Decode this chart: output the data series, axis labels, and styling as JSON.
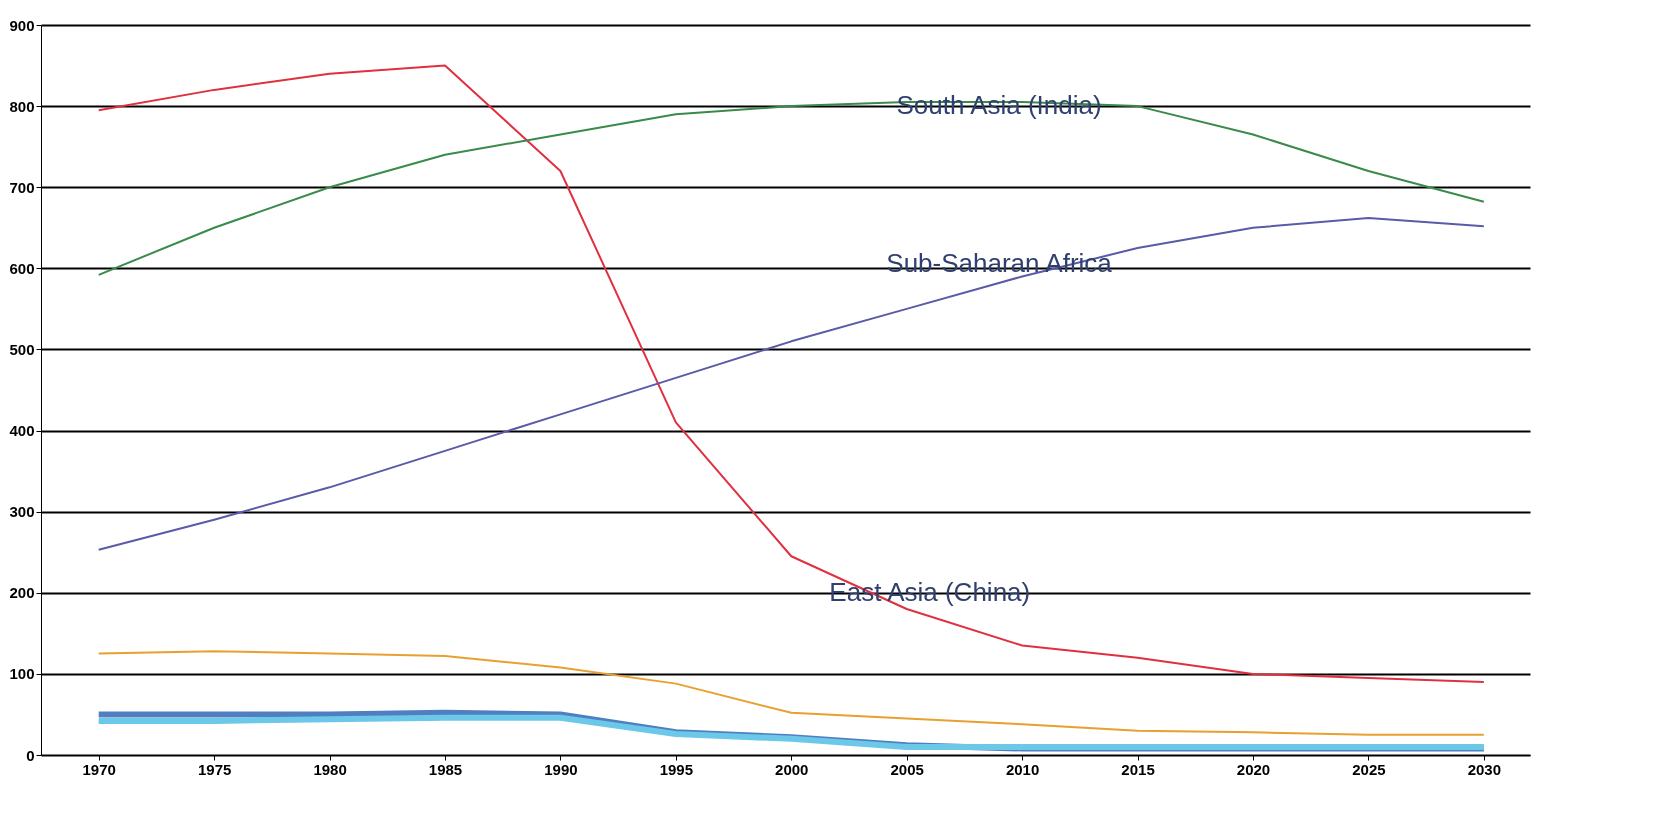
{
  "chart_data": {
    "type": "line",
    "x": [
      1970,
      1975,
      1980,
      1985,
      1990,
      1995,
      2000,
      2005,
      2010,
      2015,
      2020,
      2025,
      2030
    ],
    "series": [
      {
        "name": "East Asia (China)",
        "color": "#e03040",
        "values": [
          795,
          820,
          840,
          850,
          720,
          410,
          245,
          180,
          135,
          120,
          100,
          95,
          90
        ]
      },
      {
        "name": "South Asia (India)",
        "color": "#3a8a4a",
        "values": [
          592,
          650,
          700,
          740,
          765,
          790,
          800,
          805,
          805,
          800,
          765,
          720,
          682
        ]
      },
      {
        "name": "Sub-Saharan Africa",
        "color": "#5a5aa8",
        "values": [
          253,
          290,
          330,
          375,
          420,
          465,
          510,
          550,
          590,
          625,
          650,
          662,
          652
        ]
      },
      {
        "color": "#e8a030",
        "values": [
          125,
          128,
          125,
          122,
          108,
          88,
          52,
          45,
          38,
          30,
          28,
          25,
          25
        ]
      },
      {
        "color": "#4f7fc0",
        "values": [
          50,
          50,
          50,
          52,
          50,
          28,
          22,
          12,
          8,
          8,
          8,
          8,
          8
        ]
      },
      {
        "color": "#6cc8e8",
        "values": [
          42,
          42,
          44,
          46,
          46,
          26,
          20,
          10,
          10,
          10,
          10,
          10,
          10
        ]
      }
    ],
    "xlim": [
      1967.5,
      2032
    ],
    "xticks": [
      1970,
      1975,
      1980,
      1985,
      1990,
      1995,
      2000,
      2005,
      2010,
      2015,
      2020,
      2025,
      2030
    ],
    "ylim": [
      0,
      900
    ],
    "yticks": [
      0,
      100,
      200,
      300,
      400,
      500,
      600,
      700,
      800,
      900
    ],
    "grid": "y",
    "legend": false,
    "marker": "none",
    "line_style": "solid"
  }
}
